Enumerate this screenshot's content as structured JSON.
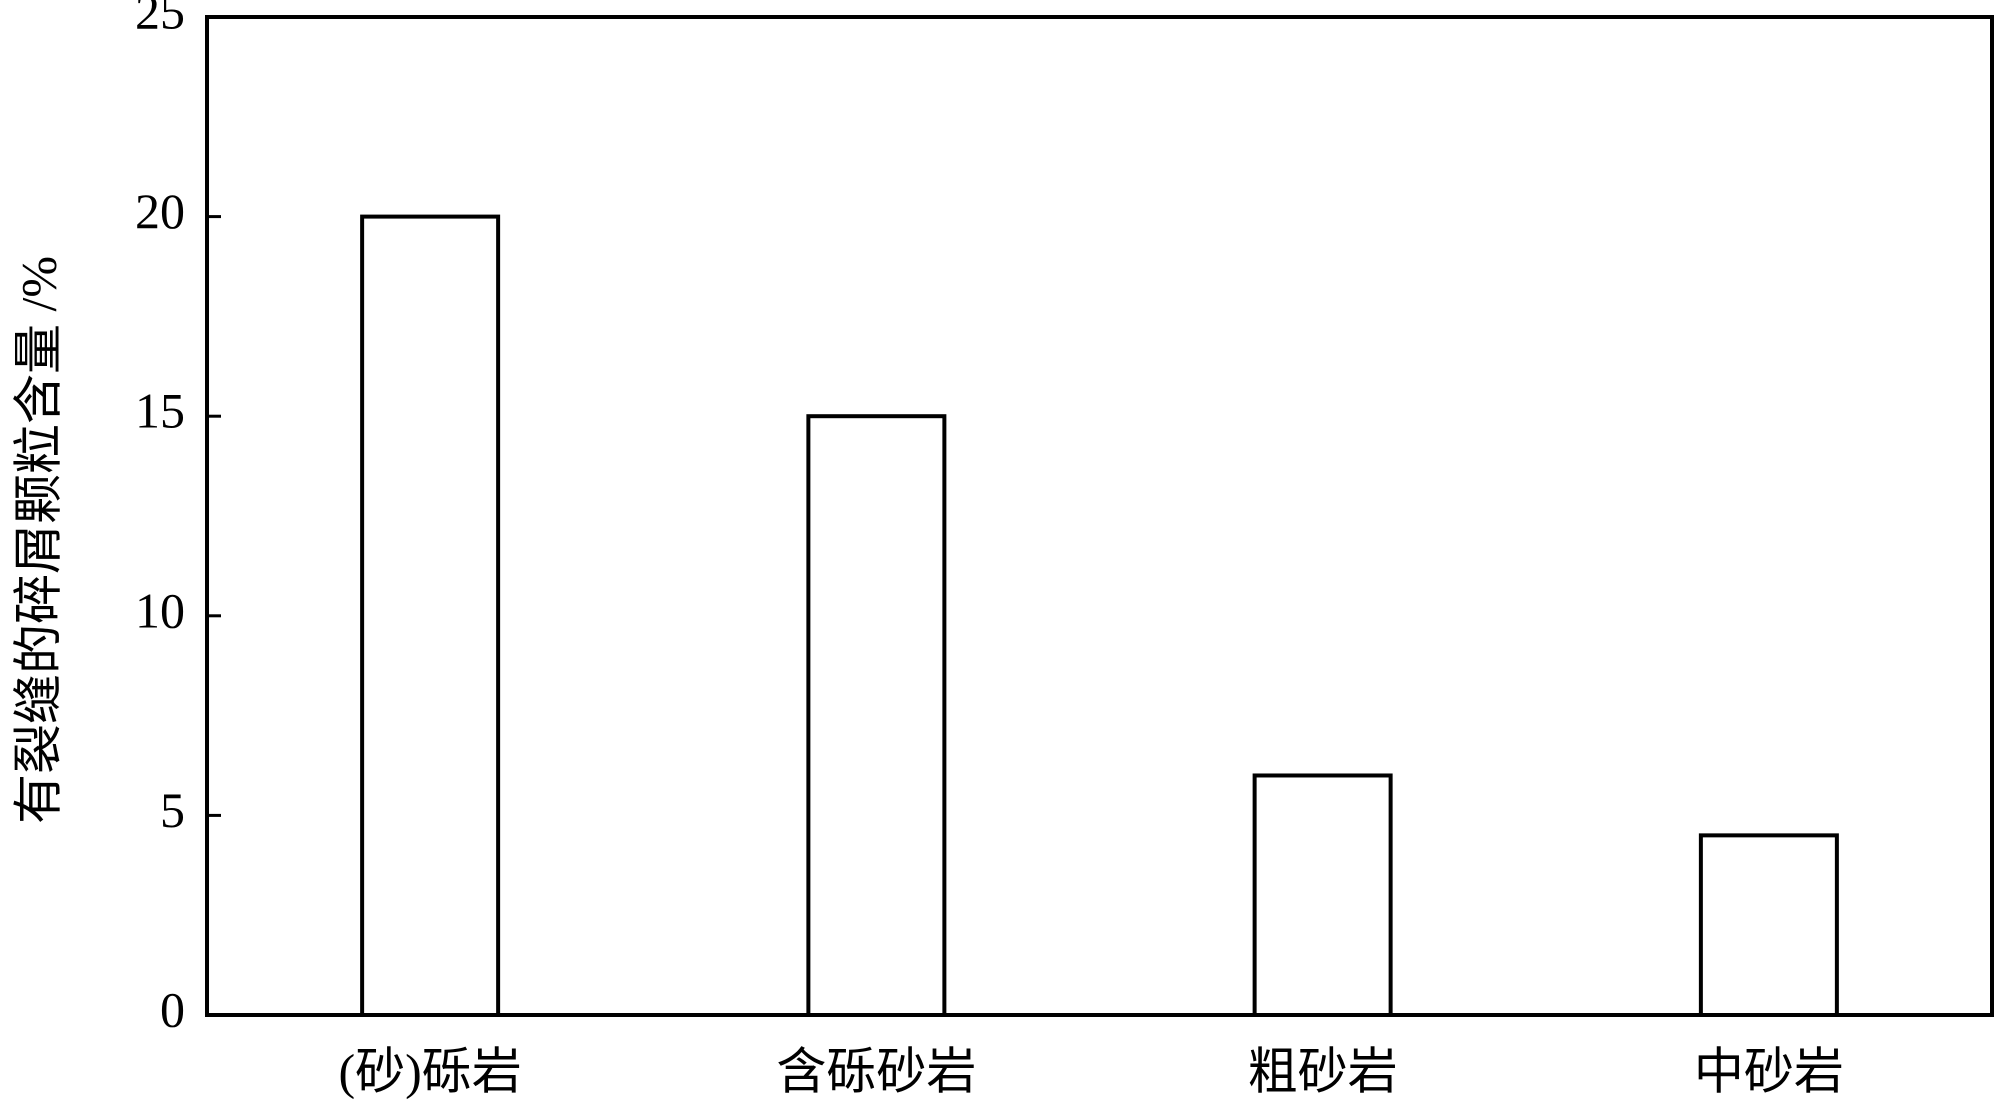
{
  "chart_data": {
    "type": "bar",
    "ylabel": "有裂缝的碎屑颗粒含量 /%",
    "categories": [
      "(砂)砾岩",
      "含砾砂岩",
      "粗砂岩",
      "中砂岩"
    ],
    "values": [
      20,
      15,
      6,
      4.5
    ],
    "color": "#ffffff",
    "edgecolor": "#000000",
    "ylim": [
      0,
      25
    ],
    "yticks": [
      0,
      5,
      10,
      15,
      20,
      25
    ],
    "grid": false
  }
}
